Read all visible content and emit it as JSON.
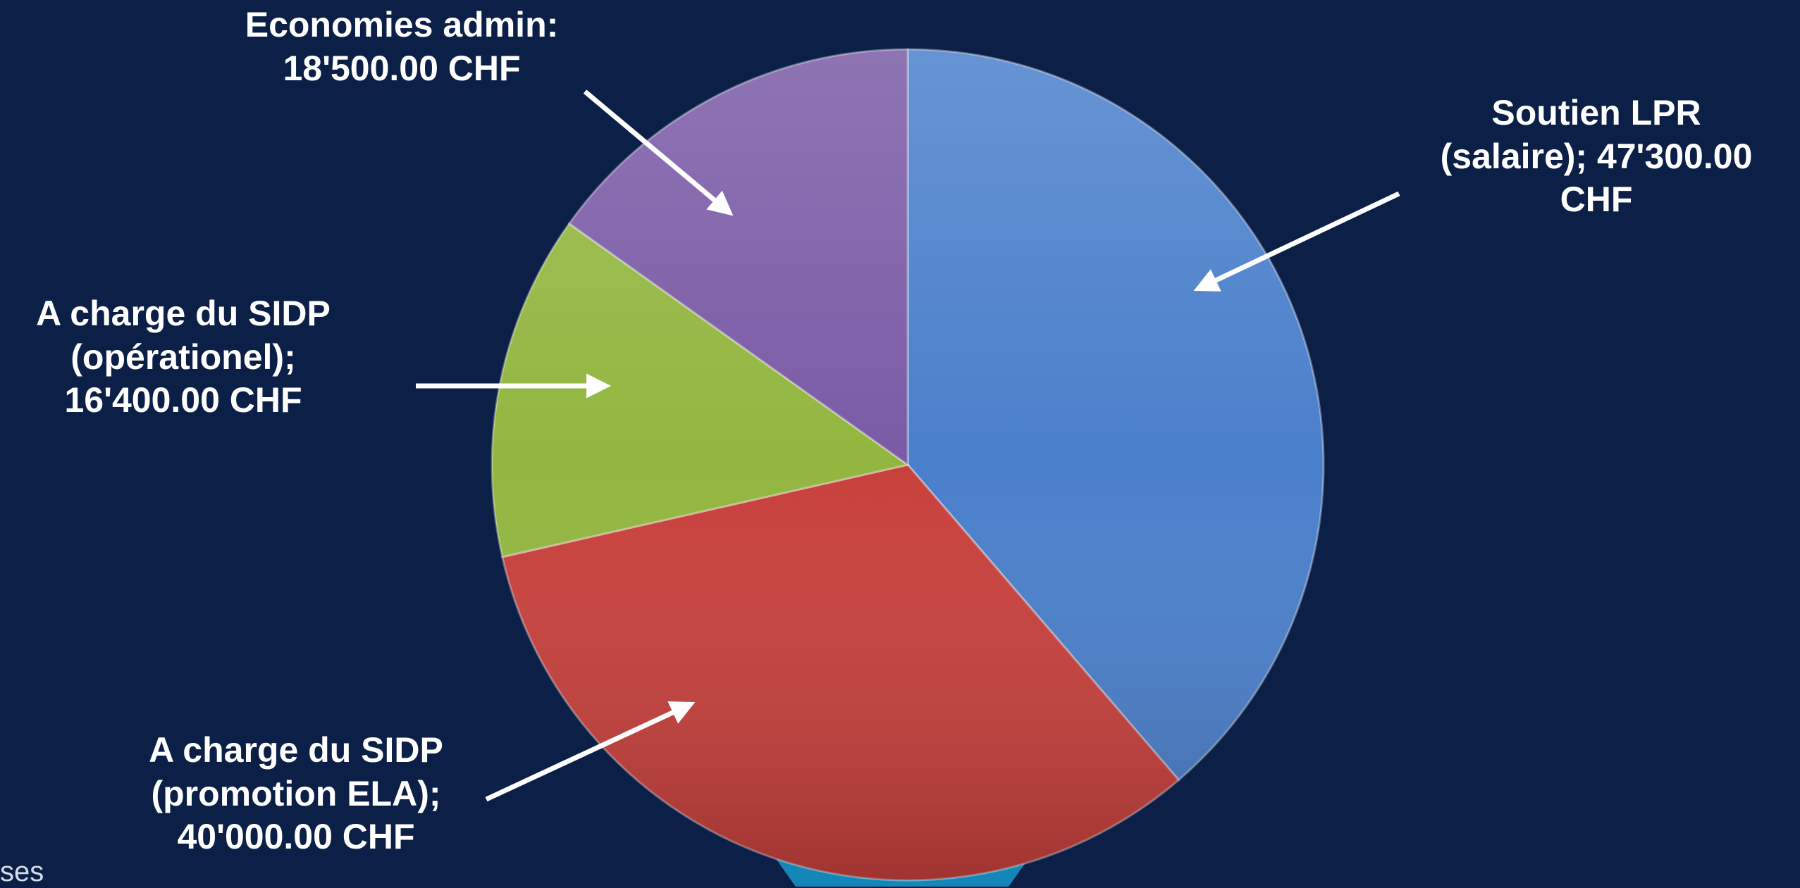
{
  "chart_data": {
    "type": "pie",
    "title": "",
    "slices": [
      {
        "lines": [
          "Soutien LPR",
          "(salaire);  47'300.00",
          "CHF"
        ],
        "value": 47300,
        "color": "#4a7fcb"
      },
      {
        "lines": [
          "A charge du SIDP",
          "(promotion ELA);",
          "40'000.00 CHF"
        ],
        "value": 40000,
        "color": "#c8403c"
      },
      {
        "lines": [
          "A charge du SIDP",
          "(opérationel);",
          "16'400.00 CHF"
        ],
        "value": 16400,
        "color": "#93b640"
      },
      {
        "lines": [
          "Economies admin:",
          "18'500.00 CHF"
        ],
        "value": 18500,
        "color": "#7a5aa6"
      }
    ]
  },
  "edge_text": "ses"
}
